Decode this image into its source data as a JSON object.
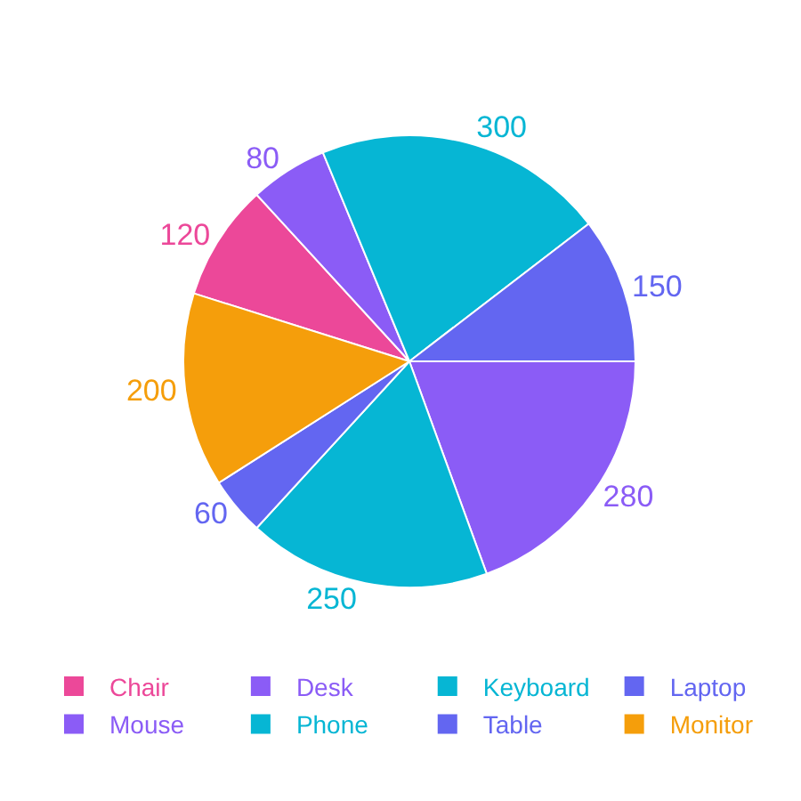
{
  "chart_data": {
    "type": "pie",
    "categories": [
      "Chair",
      "Desk",
      "Keyboard",
      "Laptop",
      "Mouse",
      "Phone",
      "Table",
      "Monitor"
    ],
    "values": [
      120,
      80,
      300,
      150,
      280,
      250,
      60,
      200
    ],
    "colors": [
      "#ec4899",
      "#8b5cf6",
      "#06b6d4",
      "#6366f1",
      "#8b5cf6",
      "#06b6d4",
      "#6366f1",
      "#f59e0b"
    ],
    "data_labels": true,
    "legend": "bottom"
  }
}
